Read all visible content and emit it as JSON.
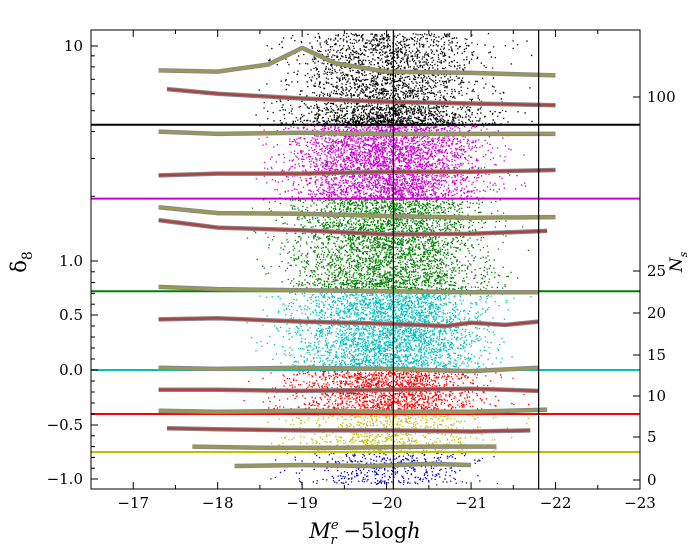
{
  "chart_data": {
    "type": "scatter",
    "title": "",
    "xlabel": {
      "main": "M",
      "sub": "r",
      "sup": "e",
      "suffix": " −5log",
      "h": "h"
    },
    "ylabel": {
      "main": "δ",
      "sub": "8"
    },
    "y2label": {
      "main": "N",
      "sub": "s"
    },
    "xlim": [
      -16.5,
      -23
    ],
    "x_ticks": [
      {
        "v": -17,
        "label": "−17"
      },
      {
        "v": -18,
        "label": "−18"
      },
      {
        "v": -19,
        "label": "−19"
      },
      {
        "v": -20,
        "label": "−20"
      },
      {
        "v": -21,
        "label": "−21"
      },
      {
        "v": -22,
        "label": "−22"
      },
      {
        "v": -23,
        "label": "−23"
      }
    ],
    "y_ticks_left": [
      {
        "v": -1.0,
        "label": "−1.0"
      },
      {
        "v": -0.5,
        "label": "−0.5"
      },
      {
        "v": 0.0,
        "label": "0.0"
      },
      {
        "v": 0.5,
        "label": "0.5"
      },
      {
        "v": 1.0,
        "label": "1.0"
      },
      {
        "v": 10,
        "label": "10"
      }
    ],
    "y_ticks_right": [
      {
        "v": 0,
        "label": "0"
      },
      {
        "v": 5,
        "label": "5"
      },
      {
        "v": 10,
        "label": "10"
      },
      {
        "v": 15,
        "label": "15"
      },
      {
        "v": 20,
        "label": "20"
      },
      {
        "v": 25,
        "label": "25"
      },
      {
        "v": 100,
        "label": "100"
      }
    ],
    "vertical_lines": [
      -20.08,
      -21.8
    ],
    "bins": [
      {
        "color": "#0000cc",
        "y_low": -1.05,
        "y_high": -0.75,
        "x_range": [
          -16.9,
          -21.9
        ],
        "boundary": null,
        "curves": [
          {
            "style": "khaki",
            "x": [
              -18.2,
              -19.0,
              -19.8,
              -20.5,
              -21.0
            ],
            "y": [
              -0.88,
              -0.87,
              -0.88,
              -0.86,
              -0.87
            ]
          }
        ]
      },
      {
        "color": "#bfbf00",
        "y_low": -0.75,
        "y_high": -0.4,
        "x_range": [
          -16.5,
          -21.8
        ],
        "boundary": -0.75,
        "curves": [
          {
            "style": "brown",
            "x": [
              -17.4,
              -18.0,
              -19.0,
              -20.0,
              -21.0,
              -21.7
            ],
            "y": [
              -0.53,
              -0.54,
              -0.55,
              -0.55,
              -0.56,
              -0.55
            ]
          },
          {
            "style": "khaki",
            "x": [
              -17.7,
              -18.5,
              -19.5,
              -20.5,
              -21.3
            ],
            "y": [
              -0.7,
              -0.71,
              -0.71,
              -0.7,
              -0.7
            ]
          }
        ]
      },
      {
        "color": "#ff0000",
        "y_low": -0.4,
        "y_high": 0.0,
        "x_range": [
          -16.8,
          -22.0
        ],
        "boundary": -0.4,
        "curves": [
          {
            "style": "khaki",
            "x": [
              -17.3,
              -18.0,
              -19.0,
              -20.0,
              -21.0,
              -21.9
            ],
            "y": [
              -0.37,
              -0.38,
              -0.37,
              -0.38,
              -0.38,
              -0.36
            ]
          },
          {
            "style": "brown",
            "x": [
              -17.3,
              -18.0,
              -19.0,
              -20.0,
              -21.0,
              -21.8
            ],
            "y": [
              -0.18,
              -0.18,
              -0.19,
              -0.18,
              -0.17,
              -0.19
            ]
          }
        ]
      },
      {
        "color": "#00bfbf",
        "y_low": 0.0,
        "y_high": 0.72,
        "x_range": [
          -16.7,
          -22.3
        ],
        "boundary": 0.0,
        "curves": [
          {
            "style": "khaki",
            "x": [
              -17.3,
              -18.0,
              -19.0,
              -20.0,
              -21.0,
              -21.8
            ],
            "y": [
              0.02,
              0.01,
              0.02,
              0.01,
              -0.01,
              0.02
            ]
          },
          {
            "style": "brown",
            "x": [
              -17.3,
              -18.0,
              -19.0,
              -20.0,
              -20.7,
              -21.0,
              -21.4,
              -21.8
            ],
            "y": [
              0.46,
              0.47,
              0.44,
              0.42,
              0.4,
              0.43,
              0.41,
              0.44
            ]
          }
        ]
      },
      {
        "color": "#008000",
        "y_low": 0.72,
        "y_high": 1.95,
        "x_range": [
          -16.6,
          -22.4
        ],
        "boundary": 0.72,
        "curves": [
          {
            "style": "khaki",
            "x": [
              -17.3,
              -18.0,
              -19.0,
              -20.0,
              -21.0,
              -21.8
            ],
            "y": [
              0.76,
              0.74,
              0.73,
              0.72,
              0.71,
              0.71
            ]
          },
          {
            "style": "brown",
            "x": [
              -17.3,
              -18.0,
              -19.0,
              -20.0,
              -21.0,
              -21.9
            ],
            "y": [
              1.55,
              1.43,
              1.39,
              1.33,
              1.34,
              1.38
            ]
          },
          {
            "style": "khaki",
            "x": [
              -17.3,
              -18.0,
              -19.0,
              -20.0,
              -21.0,
              -22.0
            ],
            "y": [
              1.78,
              1.67,
              1.66,
              1.62,
              1.59,
              1.6
            ]
          }
        ]
      },
      {
        "color": "#cc00cc",
        "y_low": 1.95,
        "y_high": 4.3,
        "x_range": [
          -16.6,
          -22.7
        ],
        "boundary": 1.95,
        "curves": [
          {
            "style": "brown",
            "x": [
              -17.3,
              -18.0,
              -19.0,
              -20.0,
              -21.0,
              -22.0
            ],
            "y": [
              2.5,
              2.55,
              2.55,
              2.6,
              2.6,
              2.65
            ]
          },
          {
            "style": "khaki",
            "x": [
              -17.3,
              -18.0,
              -19.0,
              -20.0,
              -21.0,
              -22.0
            ],
            "y": [
              4.0,
              3.9,
              3.95,
              3.9,
              3.9,
              3.9
            ]
          }
        ]
      },
      {
        "color": "#000000",
        "y_low": 4.3,
        "y_high": 11.5,
        "x_range": [
          -16.9,
          -22.6
        ],
        "boundary": 4.3,
        "curves": [
          {
            "style": "brown",
            "x": [
              -17.4,
              -18.0,
              -19.0,
              -20.0,
              -21.0,
              -22.0
            ],
            "y": [
              6.3,
              6.0,
              5.7,
              5.5,
              5.4,
              5.3
            ]
          },
          {
            "style": "khaki",
            "x": [
              -17.3,
              -18.0,
              -18.6,
              -19.0,
              -19.4,
              -20.0,
              -21.0,
              -22.0
            ],
            "y": [
              7.7,
              7.6,
              8.2,
              9.8,
              8.3,
              7.6,
              7.5,
              7.3
            ]
          }
        ]
      }
    ],
    "grid": false,
    "legend": "none"
  }
}
